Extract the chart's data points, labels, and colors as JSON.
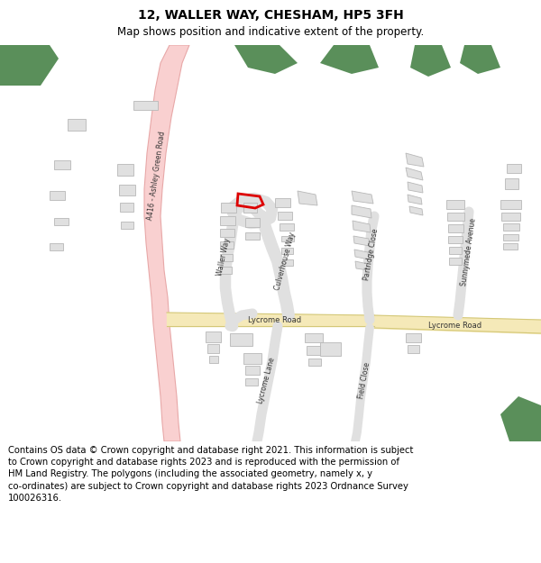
{
  "title": "12, WALLER WAY, CHESHAM, HP5 3FH",
  "subtitle": "Map shows position and indicative extent of the property.",
  "footer": "Contains OS data © Crown copyright and database right 2021. This information is subject\nto Crown copyright and database rights 2023 and is reproduced with the permission of\nHM Land Registry. The polygons (including the associated geometry, namely x, y\nco-ordinates) are subject to Crown copyright and database rights 2023 Ordnance Survey\n100026316.",
  "background_color": "#ffffff",
  "road_pink_fill": "#f9d0d0",
  "road_pink_edge": "#e8a8a8",
  "road_yellow_fill": "#f5e9b8",
  "road_yellow_edge": "#e8d888",
  "road_grey_fill": "#e8e8e8",
  "road_grey_edge": "#cccccc",
  "building_fill": "#e0e0e0",
  "building_edge": "#b8b8b8",
  "green_fill": "#5a8f5a",
  "highlight_edge": "#dd0000",
  "text_dark": "#333333",
  "title_fontsize": 10,
  "subtitle_fontsize": 8.5,
  "footer_fontsize": 7.2,
  "label_fontsize": 5.5
}
